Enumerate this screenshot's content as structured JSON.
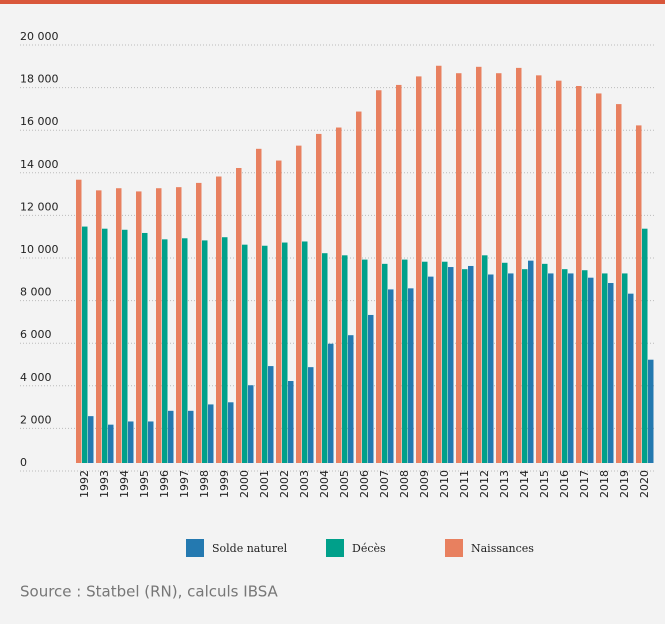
{
  "chart_data": {
    "type": "bar",
    "categories": [
      "1992",
      "1993",
      "1994",
      "1995",
      "1996",
      "1997",
      "1998",
      "1999",
      "2000",
      "2001",
      "2002",
      "2003",
      "2004",
      "2005",
      "2006",
      "2007",
      "2008",
      "2009",
      "2010",
      "2011",
      "2012",
      "2013",
      "2014",
      "2015",
      "2016",
      "2017",
      "2018",
      "2019",
      "2020"
    ],
    "series": [
      {
        "name": "Naissances",
        "color": "#e8805f",
        "values": [
          13300,
          12800,
          12900,
          12750,
          12900,
          12950,
          13150,
          13450,
          13850,
          14750,
          14200,
          14900,
          15450,
          15750,
          16500,
          17500,
          17750,
          18150,
          18650,
          18300,
          18600,
          18300,
          18550,
          18200,
          17950,
          17700,
          17350,
          16850,
          15850
        ]
      },
      {
        "name": "Décès",
        "color": "#00a08a",
        "values": [
          11100,
          11000,
          10950,
          10800,
          10500,
          10550,
          10450,
          10600,
          10250,
          10200,
          10350,
          10400,
          9850,
          9750,
          9550,
          9350,
          9550,
          9450,
          9450,
          9100,
          9750,
          9400,
          9100,
          9350,
          9100,
          9050,
          8900,
          8900,
          11000
        ]
      },
      {
        "name": "Solde naturel",
        "color": "#2479b0",
        "values": [
          2200,
          1800,
          1950,
          1950,
          2450,
          2450,
          2750,
          2850,
          3650,
          4550,
          3850,
          4500,
          5600,
          6000,
          6950,
          8150,
          8200,
          8750,
          9200,
          9250,
          8850,
          8900,
          9500,
          8900,
          8900,
          8700,
          8450,
          7950,
          4850
        ]
      }
    ],
    "legend_order": [
      "Solde naturel",
      "Décès",
      "Naissances"
    ],
    "ylim": [
      0,
      20000
    ],
    "yticks": [
      0,
      {
        "value": 2000,
        "label": "2 000"
      },
      {
        "value": 4000,
        "label": "4 000"
      },
      {
        "value": 6000,
        "label": "6 000"
      },
      {
        "value": 8000,
        "label": "8 000"
      },
      {
        "value": 10000,
        "label": "10 000"
      },
      {
        "value": 12000,
        "label": "12 000"
      },
      {
        "value": 14000,
        "label": "14 000"
      },
      {
        "value": 16000,
        "label": "16 000"
      },
      {
        "value": 18000,
        "label": "18 000"
      },
      {
        "value": 20000,
        "label": "20 000"
      }
    ],
    "grid": true,
    "source": "Source : Statbel (RN), calculs IBSA"
  }
}
